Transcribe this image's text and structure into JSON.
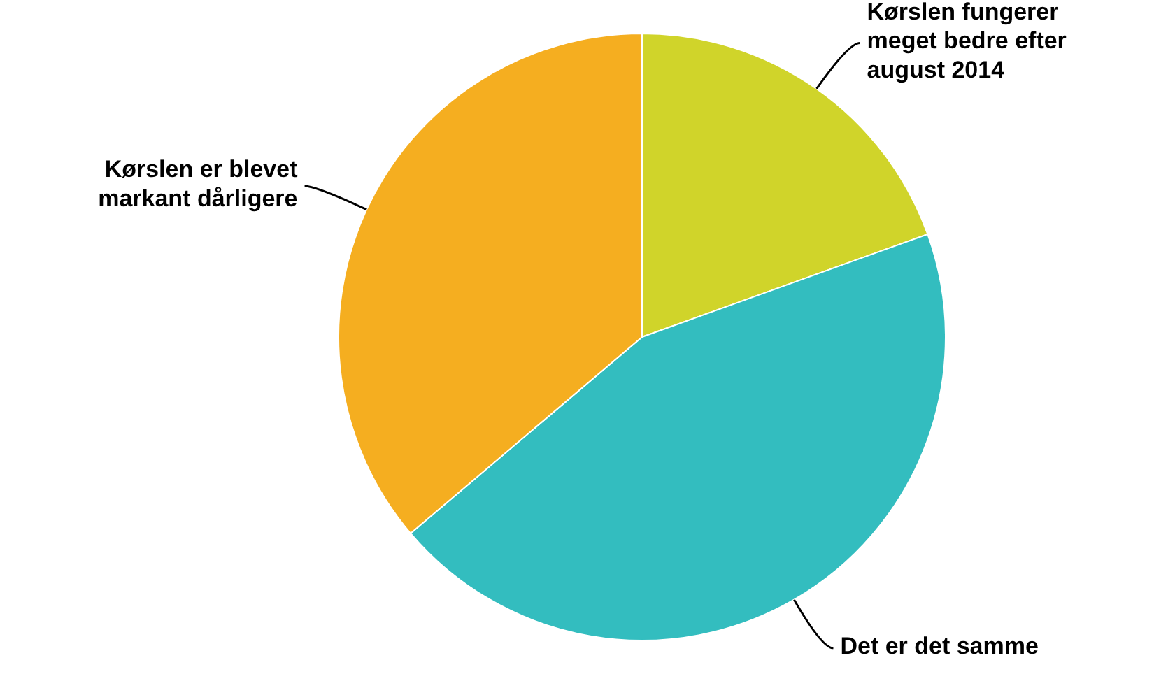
{
  "chart_data": {
    "type": "pie",
    "categories": [
      "Kørslen fungerer meget bedre efter august 2014",
      "Det er det samme",
      "Kørslen er blevet markant dårligere"
    ],
    "values": [
      19.5,
      44.3,
      36.2
    ],
    "colors": [
      "#d0d42a",
      "#33bdbf",
      "#f5ae20"
    ]
  }
}
